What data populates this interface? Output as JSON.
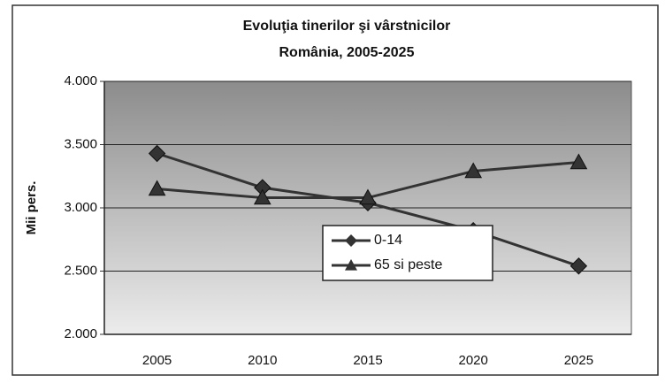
{
  "chart_data": {
    "type": "line",
    "title": "Evoluţia tinerilor şi vârstnicilor",
    "subtitle": "România, 2005-2025",
    "ylabel": "Mii pers.",
    "categories": [
      "2005",
      "2010",
      "2015",
      "2020",
      "2025"
    ],
    "series": [
      {
        "name": "0-14",
        "color": "#333333",
        "marker": "diamond",
        "values": [
          3430,
          3160,
          3040,
          2820,
          2540
        ]
      },
      {
        "name": "65 si peste",
        "color": "#333333",
        "marker": "triangle",
        "values": [
          3150,
          3080,
          3080,
          3290,
          3360
        ]
      }
    ],
    "ylim": [
      2000,
      4000
    ],
    "yticks": [
      {
        "value": 2000,
        "label": "2.000"
      },
      {
        "value": 2500,
        "label": "2.500"
      },
      {
        "value": 3000,
        "label": "3.000"
      },
      {
        "value": 3500,
        "label": "3.500"
      },
      {
        "value": 4000,
        "label": "4.000"
      }
    ],
    "grid": true,
    "legend": "center"
  }
}
